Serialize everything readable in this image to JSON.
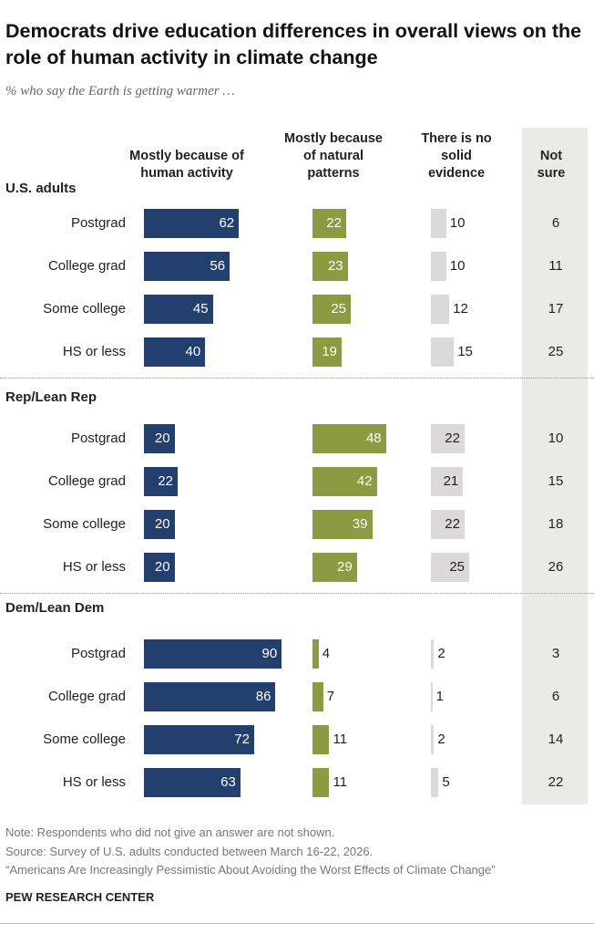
{
  "chart_data": {
    "type": "bar",
    "title": "Democrats drive education differences in overall views on the role of human activity in climate change",
    "subtitle": "% who say the Earth is getting warmer …",
    "series": [
      {
        "name": "Mostly because of human activity",
        "color": "#223f6e"
      },
      {
        "name": "Mostly because of natural patterns",
        "color": "#8c9a41"
      },
      {
        "name": "There is no solid evidence",
        "color": "#dcd9da"
      },
      {
        "name": "Not sure",
        "color": "#ebebe5",
        "kind": "text"
      }
    ],
    "groups": [
      {
        "name": "U.S. adults",
        "categories": [
          "Postgrad",
          "College grad",
          "Some college",
          "HS or less"
        ],
        "series": [
          {
            "values": [
              62,
              56,
              45,
              40
            ]
          },
          {
            "values": [
              22,
              23,
              25,
              19
            ]
          },
          {
            "values": [
              10,
              10,
              12,
              15
            ]
          },
          {
            "values": [
              6,
              11,
              17,
              25
            ]
          }
        ]
      },
      {
        "name": "Rep/Lean Rep",
        "categories": [
          "Postgrad",
          "College grad",
          "Some college",
          "HS or less"
        ],
        "series": [
          {
            "values": [
              20,
              22,
              20,
              20
            ]
          },
          {
            "values": [
              48,
              42,
              39,
              29
            ]
          },
          {
            "values": [
              22,
              21,
              22,
              25
            ]
          },
          {
            "values": [
              10,
              15,
              18,
              26
            ]
          }
        ]
      },
      {
        "name": "Dem/Lean Dem",
        "categories": [
          "Postgrad",
          "College grad",
          "Some college",
          "HS or less"
        ],
        "series": [
          {
            "values": [
              90,
              86,
              72,
              63
            ]
          },
          {
            "values": [
              4,
              7,
              11,
              11
            ]
          },
          {
            "values": [
              2,
              1,
              2,
              5
            ]
          },
          {
            "values": [
              3,
              6,
              14,
              22
            ]
          }
        ]
      }
    ]
  },
  "notes": [
    "Note: Respondents who did not give an answer are not shown.",
    "Source: Survey of U.S. adults conducted between March 16-22, 2026.",
    "“Americans Are Increasingly Pessimistic About Avoiding the Worst Effects of Climate Change”"
  ],
  "footer": "PEW RESEARCH CENTER"
}
